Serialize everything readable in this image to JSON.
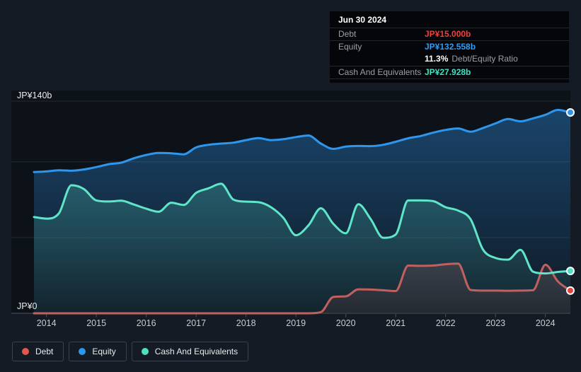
{
  "tooltip": {
    "date": "Jun 30 2024",
    "debt_label": "Debt",
    "debt_value": "JP¥15.000b",
    "equity_label": "Equity",
    "equity_value": "JP¥132.558b",
    "ratio_value": "11.3%",
    "ratio_label": "Debt/Equity Ratio",
    "cash_label": "Cash And Equivalents",
    "cash_value": "JP¥27.928b"
  },
  "colors": {
    "debt_value": "#ee403c",
    "equity_value": "#2f9cf5",
    "cash_value": "#40e2c4",
    "page_bg": "#141b24",
    "plot_bg": "#0d1219"
  },
  "legend": {
    "items": [
      {
        "label": "Debt",
        "color": "#e2574e"
      },
      {
        "label": "Equity",
        "color": "#2b97ee"
      },
      {
        "label": "Cash And Equivalents",
        "color": "#4de1c3"
      }
    ]
  },
  "chart_data": {
    "type": "area",
    "title": "",
    "xlabel": "",
    "ylabel": "",
    "x_start": 2013.75,
    "x_step": 0.25,
    "x_end": 2024.5,
    "x_ticks": [
      2014,
      2015,
      2016,
      2017,
      2018,
      2019,
      2020,
      2021,
      2022,
      2023,
      2024
    ],
    "y_axis": {
      "max": 140,
      "top_label": "JP¥140b",
      "zero_label": "JP¥0",
      "gridline_values": [
        140,
        100,
        50
      ],
      "unit": "JP¥ billions"
    },
    "grid": true,
    "legend_position": "bottom-left",
    "series": [
      {
        "name": "Debt",
        "color": "#c2605f",
        "marker_color": "#e8403d",
        "fill_rgb": "198,92,92",
        "fill_alpha_top": 0.42,
        "fill_alpha_bottom": 0.1,
        "values": [
          0,
          0,
          0,
          0,
          0,
          0,
          0,
          0,
          0,
          0,
          0,
          0,
          0,
          0,
          0,
          0,
          0,
          0,
          0,
          0,
          0,
          0,
          0,
          0.8,
          10.8,
          11.2,
          15.8,
          15.7,
          15.2,
          14.7,
          31.5,
          31.3,
          31.5,
          32.4,
          32.8,
          15.4,
          15,
          15,
          14.9,
          15,
          15.2,
          32,
          21,
          15
        ]
      },
      {
        "name": "Equity",
        "color": "#2e96ec",
        "marker_color": "#2e96ec",
        "fill_rgb": "46,150,236",
        "fill_alpha_top": 0.4,
        "fill_alpha_bottom": 0.05,
        "values": [
          93.2,
          93.6,
          94.4,
          94.1,
          94.9,
          96.5,
          98.4,
          99.4,
          102.3,
          104.5,
          105.8,
          105.6,
          104.9,
          109.5,
          111.2,
          112,
          112.6,
          114.3,
          115.6,
          114.3,
          114.9,
          116.3,
          117.3,
          112,
          108.5,
          110,
          110.4,
          110.3,
          111.2,
          113.2,
          115.5,
          117,
          119.2,
          121,
          122,
          119.8,
          122.3,
          125.3,
          128.2,
          126.7,
          128.6,
          131,
          134.2,
          132.558
        ]
      },
      {
        "name": "Cash And Equivalents",
        "color": "#5fe6c9",
        "marker_color": "#45e2c4",
        "fill_rgb": "95,230,201",
        "fill_alpha_top": 0.33,
        "fill_alpha_bottom": 0.05,
        "values": [
          63.5,
          62.5,
          66,
          84.5,
          82,
          74.5,
          73.8,
          74.3,
          71.8,
          69,
          67,
          73,
          71.5,
          79.5,
          82.5,
          85.5,
          75,
          73.7,
          73.3,
          70,
          62.9,
          51.5,
          58,
          69.3,
          59,
          52.8,
          72,
          62,
          49.8,
          52,
          74.5,
          74.5,
          74,
          70,
          67.8,
          62,
          42,
          36.5,
          35.4,
          41.9,
          27.5,
          26.3,
          27.3,
          27.928
        ]
      }
    ]
  }
}
